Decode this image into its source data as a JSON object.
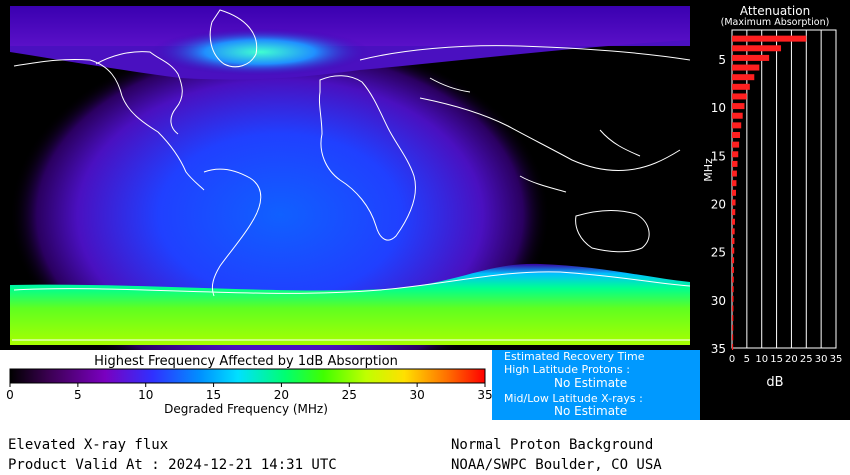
{
  "legend": {
    "title": "Highest Frequency Affected by 1dB Absorption",
    "xlabel": "Degraded Frequency (MHz)",
    "ticks": [
      "0",
      "5",
      "10",
      "15",
      "20",
      "25",
      "30",
      "35"
    ]
  },
  "attenuation": {
    "title": "Attenuation",
    "subtitle": "(Maximum Absorption)",
    "ylabel": "MHz",
    "xlabel": "dB",
    "y_ticks": [
      "5",
      "10",
      "15",
      "20",
      "25",
      "30",
      "35"
    ],
    "x_ticks": [
      "0",
      "5",
      "10",
      "15",
      "20",
      "25",
      "30",
      "35"
    ]
  },
  "recovery": {
    "title": "Estimated Recovery Time",
    "high_lat_label": "High Latitude Protons :",
    "high_lat_value": "No Estimate",
    "low_lat_label": "Mid/Low Latitude X-rays :",
    "low_lat_value": "No Estimate"
  },
  "footer": {
    "status_left": "Elevated X-ray flux",
    "valid_at": "Product Valid At : 2024-12-21 14:31 UTC",
    "status_right": "Normal Proton Background",
    "source": "NOAA/SWPC Boulder, CO USA"
  },
  "colors": {
    "bar": "#ff2020",
    "recovery_bg": "#0099ff",
    "colorbar": [
      "#000000",
      "#3a0050",
      "#7a00c0",
      "#3030ff",
      "#0090ff",
      "#00e0ff",
      "#00ff70",
      "#40ff00",
      "#c0ff00",
      "#ffe000",
      "#ff7000",
      "#ff0000"
    ]
  },
  "chart_data": {
    "type": "bar",
    "orientation": "horizontal",
    "title": "Attenuation",
    "subtitle": "(Maximum Absorption)",
    "xlabel": "dB",
    "ylabel": "MHz",
    "xlim": [
      0,
      35
    ],
    "ylim": [
      35,
      2
    ],
    "frequencies_mhz": [
      3,
      4,
      5,
      6,
      7,
      8,
      9,
      10,
      11,
      12,
      13,
      14,
      15,
      16,
      17,
      18,
      19,
      20,
      21,
      22,
      23,
      24,
      25,
      26,
      27,
      28,
      29,
      30,
      31,
      32,
      33,
      34,
      35
    ],
    "values_db": [
      25.0,
      16.5,
      12.5,
      9.2,
      7.5,
      6.0,
      5.0,
      4.2,
      3.6,
      3.1,
      2.7,
      2.4,
      2.1,
      1.85,
      1.65,
      1.5,
      1.35,
      1.2,
      1.1,
      1.0,
      0.9,
      0.82,
      0.75,
      0.7,
      0.64,
      0.59,
      0.55,
      0.51,
      0.48,
      0.45,
      0.42,
      0.4,
      0.38
    ]
  }
}
